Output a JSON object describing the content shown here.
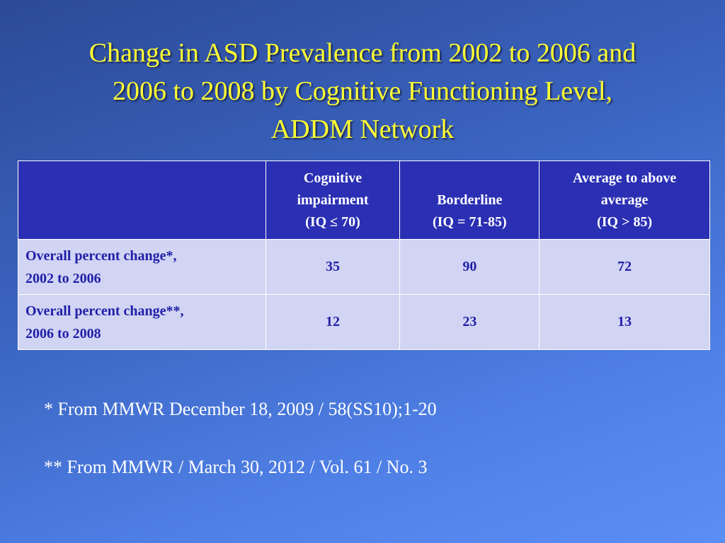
{
  "slide": {
    "title_lines": [
      "Change in ASD Prevalence from 2002 to 2006 and",
      "2006 to 2008 by Cognitive Functioning Level,",
      "ADDM Network"
    ]
  },
  "table": {
    "corner": "",
    "headers": [
      {
        "lines": [
          "Cognitive",
          "impairment",
          "(IQ ≤ 70)"
        ]
      },
      {
        "lines": [
          "",
          "Borderline",
          "(IQ = 71-85)"
        ]
      },
      {
        "lines": [
          "Average to above",
          "average",
          "(IQ > 85)"
        ]
      }
    ],
    "rows": [
      {
        "label_lines": [
          "Overall percent change*,",
          "2002 to 2006"
        ],
        "values": [
          "35",
          "90",
          "72"
        ]
      },
      {
        "label_lines": [
          "Overall percent change**,",
          "2006 to 2008"
        ],
        "values": [
          "12",
          "23",
          "13"
        ]
      }
    ]
  },
  "footnotes": [
    "* From MMWR December 18, 2009 / 58(SS10);1-20",
    "** From MMWR / March 30, 2012 / Vol. 61 / No. 3"
  ],
  "colors": {
    "title": "#ffff33",
    "header_bg": "#2a2fb3",
    "cell_bg": "#d2d4f4",
    "cell_text": "#2020a8",
    "background_top": "#2c4a96",
    "background_bottom": "#5b8ef5"
  }
}
